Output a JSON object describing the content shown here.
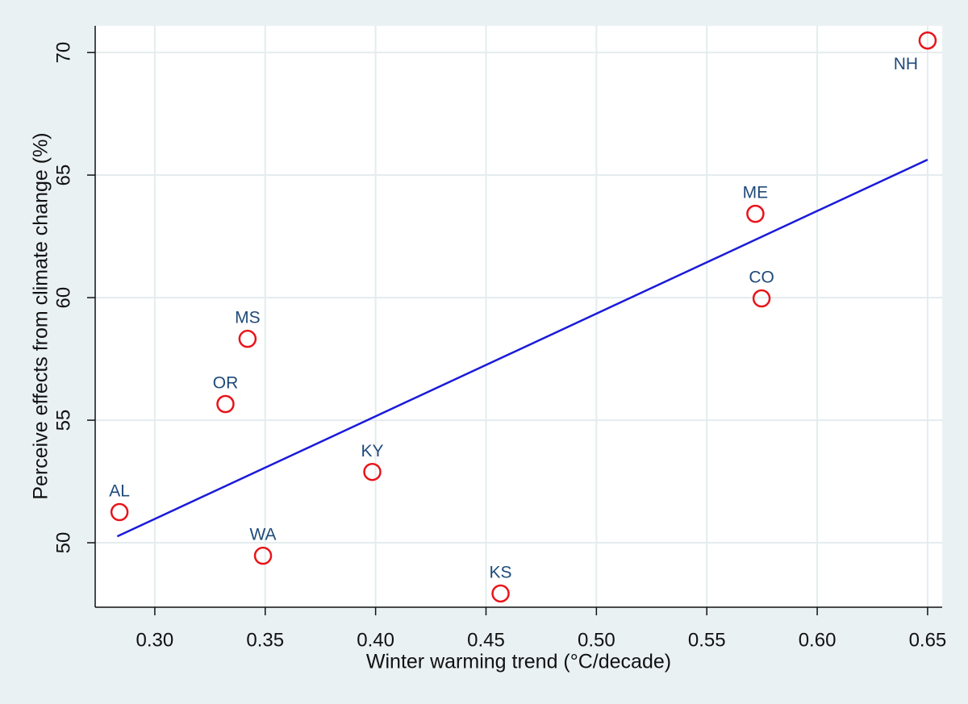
{
  "chart_data": {
    "type": "scatter",
    "xlabel": "Winter warming trend (°C/decade)",
    "ylabel": "Perceive effects from climate change (%)",
    "labels": [
      "AL",
      "MS",
      "OR",
      "WA",
      "KY",
      "KS",
      "ME",
      "CO",
      "NH"
    ],
    "x": [
      0.284,
      0.342,
      0.332,
      0.349,
      0.3985,
      0.4566,
      0.572,
      0.5748,
      0.65
    ],
    "values": [
      51.25,
      58.32,
      55.66,
      49.47,
      52.89,
      47.93,
      63.42,
      59.97,
      70.49
    ],
    "color": "#e8141a",
    "fit": {
      "x": [
        0.283,
        0.65
      ],
      "values": [
        50.26,
        65.63
      ],
      "color": "#1a1adb"
    },
    "xlim": [
      0.273,
      0.6566
    ],
    "ylim": [
      47.37,
      71.09
    ],
    "xticks": [
      {
        "value": 0.3,
        "label": "0.30"
      },
      0.35,
      {
        "value": 0.4,
        "label": "0.40"
      },
      0.45,
      {
        "value": 0.5,
        "label": "0.50"
      },
      0.55,
      {
        "value": 0.6,
        "label": "0.60"
      },
      0.65
    ],
    "yticks": [
      50,
      55,
      60,
      65,
      70
    ],
    "grid": true
  }
}
